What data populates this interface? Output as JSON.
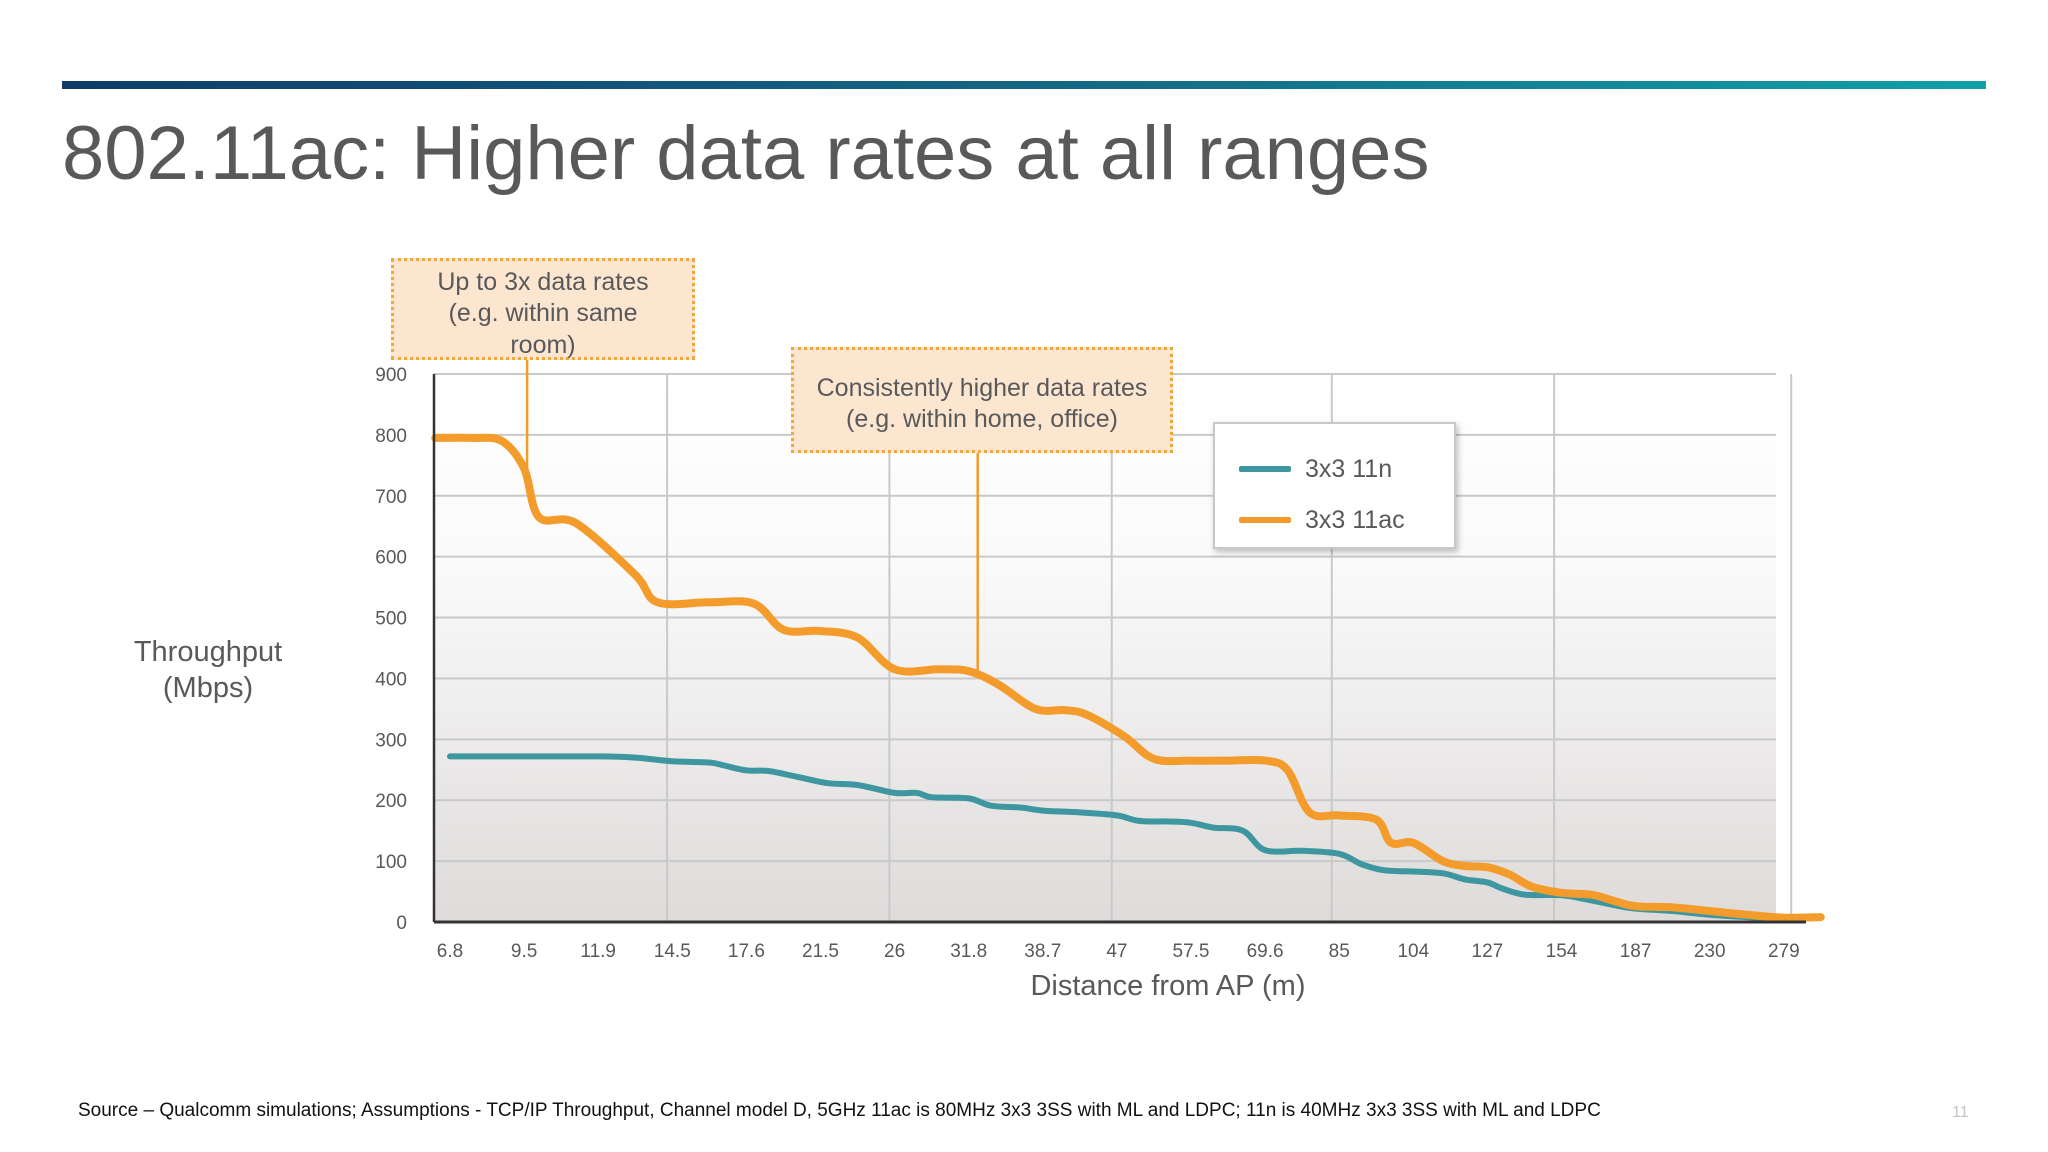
{
  "slide": {
    "title": "802.11ac: Higher data rates at all ranges",
    "source_note": "Source – Qualcomm simulations;  Assumptions -  TCP/IP Throughput, Channel model D, 5GHz 11ac is 80MHz 3x3 3SS with ML and LDPC; 11n is 40MHz 3x3 3SS with ML and LDPC",
    "page_number": "11",
    "accent_colors": {
      "rule_start": "#0f3c6a",
      "rule_end": "#12a0a6"
    }
  },
  "callouts": [
    {
      "lines": [
        "Up to 3x data rates",
        "(e.g. within same",
        "room)"
      ],
      "points_to_category": "9.5"
    },
    {
      "lines": [
        "Consistently higher data rates",
        "(e.g. within home, office)"
      ],
      "points_to_category": "31.8"
    }
  ],
  "chart_data": {
    "type": "line",
    "ylabel_lines": [
      "Throughput",
      "(Mbps)"
    ],
    "xlabel": "Distance from AP (m)",
    "categories": [
      "6.8",
      "9.5",
      "11.9",
      "14.5",
      "17.6",
      "21.5",
      "26",
      "31.8",
      "38.7",
      "47",
      "57.5",
      "69.6",
      "85",
      "104",
      "127",
      "154",
      "187",
      "230",
      "279"
    ],
    "ylim": [
      0,
      900
    ],
    "yticks": [
      0,
      100,
      200,
      300,
      400,
      500,
      600,
      700,
      800,
      900
    ],
    "grid": true,
    "legend_position": "top-right",
    "series": [
      {
        "name": "3x3 11n",
        "color": "#3e96a0",
        "points": [
          [
            0,
            272
          ],
          [
            1,
            272
          ],
          [
            2,
            272
          ],
          [
            2.5,
            270
          ],
          [
            3,
            264
          ],
          [
            3.5,
            262
          ],
          [
            3.7,
            257
          ],
          [
            4,
            249
          ],
          [
            4.3,
            248
          ],
          [
            4.7,
            238
          ],
          [
            5.1,
            228
          ],
          [
            5.5,
            225
          ],
          [
            6,
            212
          ],
          [
            6.3,
            212
          ],
          [
            6.5,
            205
          ],
          [
            7,
            203
          ],
          [
            7.3,
            191
          ],
          [
            7.7,
            188
          ],
          [
            8,
            183
          ],
          [
            8.5,
            180
          ],
          [
            9,
            175
          ],
          [
            9.3,
            166
          ],
          [
            9.7,
            165
          ],
          [
            10,
            163
          ],
          [
            10.3,
            155
          ],
          [
            10.7,
            150
          ],
          [
            11,
            118
          ],
          [
            11.5,
            117
          ],
          [
            12,
            112
          ],
          [
            12.3,
            95
          ],
          [
            12.6,
            85
          ],
          [
            13,
            83
          ],
          [
            13.4,
            80
          ],
          [
            13.7,
            70
          ],
          [
            14,
            65
          ],
          [
            14.2,
            55
          ],
          [
            14.5,
            45
          ],
          [
            15,
            44
          ],
          [
            15.3,
            38
          ],
          [
            15.7,
            28
          ],
          [
            16,
            22
          ],
          [
            16.5,
            18
          ],
          [
            17,
            12
          ],
          [
            17.5,
            8
          ],
          [
            18,
            5
          ]
        ]
      },
      {
        "name": "3x3 11ac",
        "color": "#f39c2c",
        "points": [
          [
            -0.2,
            795
          ],
          [
            0.3,
            795
          ],
          [
            0.7,
            790
          ],
          [
            1,
            745
          ],
          [
            1.2,
            665
          ],
          [
            1.7,
            655
          ],
          [
            2.5,
            570
          ],
          [
            2.8,
            525
          ],
          [
            3.5,
            525
          ],
          [
            4.1,
            523
          ],
          [
            4.5,
            480
          ],
          [
            5,
            478
          ],
          [
            5.5,
            467
          ],
          [
            6,
            415
          ],
          [
            6.6,
            415
          ],
          [
            7,
            412
          ],
          [
            7.4,
            390
          ],
          [
            7.9,
            350
          ],
          [
            8.3,
            348
          ],
          [
            8.6,
            340
          ],
          [
            9.1,
            305
          ],
          [
            9.5,
            268
          ],
          [
            10,
            265
          ],
          [
            10.5,
            265
          ],
          [
            11,
            265
          ],
          [
            11.3,
            250
          ],
          [
            11.6,
            180
          ],
          [
            12,
            175
          ],
          [
            12.5,
            168
          ],
          [
            12.7,
            130
          ],
          [
            13,
            130
          ],
          [
            13.4,
            100
          ],
          [
            13.7,
            92
          ],
          [
            14,
            90
          ],
          [
            14.3,
            78
          ],
          [
            14.6,
            58
          ],
          [
            15,
            48
          ],
          [
            15.4,
            45
          ],
          [
            15.7,
            35
          ],
          [
            16,
            26
          ],
          [
            16.5,
            24
          ],
          [
            17,
            18
          ],
          [
            17.5,
            12
          ],
          [
            18,
            7
          ],
          [
            18.5,
            8
          ]
        ]
      }
    ]
  }
}
